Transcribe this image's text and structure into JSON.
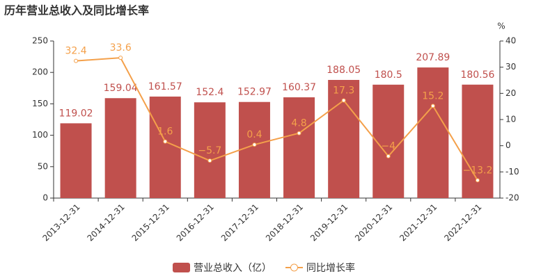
{
  "chart_data": {
    "type": "bar",
    "title": "历年营业总收入及同比增长率",
    "y2_label": "%",
    "categories": [
      "2013-12-31",
      "2014-12-31",
      "2015-12-31",
      "2016-12-31",
      "2017-12-31",
      "2018-12-31",
      "2019-12-31",
      "2020-12-31",
      "2021-12-31",
      "2022-12-31"
    ],
    "series": [
      {
        "name": "营业总收入（亿）",
        "type": "bar",
        "color": "#c0504d",
        "label_color": "#c0504d",
        "values": [
          119.02,
          159.04,
          161.57,
          152.4,
          152.97,
          160.37,
          188.05,
          180.5,
          207.89,
          180.56
        ]
      },
      {
        "name": "同比增长率",
        "type": "line",
        "axis": "y2",
        "color": "#f4a04a",
        "label_color": "#f4a04a",
        "values": [
          32.4,
          33.6,
          1.6,
          -5.7,
          0.4,
          4.8,
          17.3,
          -4,
          15.2,
          -13.2
        ],
        "value_labels": [
          "32.4",
          "33.6",
          "1.6",
          "−5.7",
          "0.4",
          "4.8",
          "17.3",
          "−4",
          "15.2",
          "−13.2"
        ]
      }
    ],
    "ylim": [
      0,
      250
    ],
    "yticks": [
      0,
      50,
      100,
      150,
      200,
      250
    ],
    "y2lim": [
      -20,
      40
    ],
    "y2ticks": [
      -20,
      -10,
      0,
      10,
      20,
      30,
      40
    ],
    "legend": "bottom"
  }
}
